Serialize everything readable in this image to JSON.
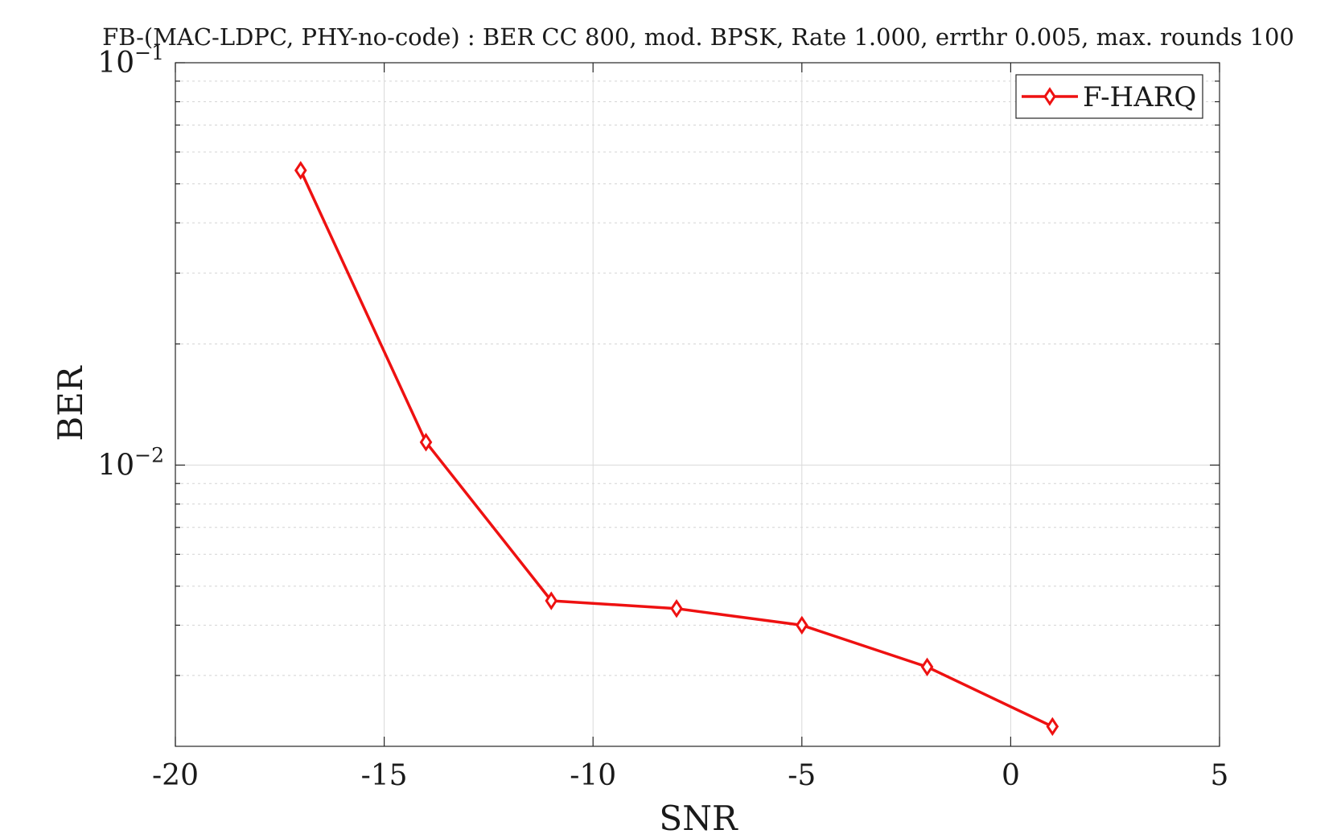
{
  "chart_data": {
    "type": "line",
    "title": "FB-(MAC-LDPC, PHY-no-code) : BER CC 800, mod. BPSK, Rate 1.000, errthr 0.005, max. rounds 100",
    "xlabel": "SNR",
    "ylabel": "BER",
    "xlim": [
      -20,
      5
    ],
    "ylim": [
      0.002,
      0.1
    ],
    "yscale": "log",
    "grid": true,
    "minor_grid": true,
    "legend_position": "top-right",
    "x_ticks": [
      {
        "value": -20,
        "label": "-20"
      },
      {
        "value": -15,
        "label": "-15"
      },
      {
        "value": -10,
        "label": "-10"
      },
      {
        "value": -5,
        "label": "-5"
      },
      {
        "value": 0,
        "label": "0"
      },
      {
        "value": 5,
        "label": "5"
      }
    ],
    "y_ticks": [
      {
        "value": 0.01,
        "base": "10",
        "exponent": "−2"
      },
      {
        "value": 0.1,
        "base": "10",
        "exponent": "−1"
      }
    ],
    "series": [
      {
        "name": "F-HARQ",
        "color": "#ee1111",
        "marker": "diamond",
        "x": [
          -17,
          -14,
          -11,
          -8,
          -5,
          -2,
          1
        ],
        "y": [
          0.054,
          0.0114,
          0.0046,
          0.0044,
          0.004,
          0.00315,
          0.00224
        ]
      }
    ]
  }
}
